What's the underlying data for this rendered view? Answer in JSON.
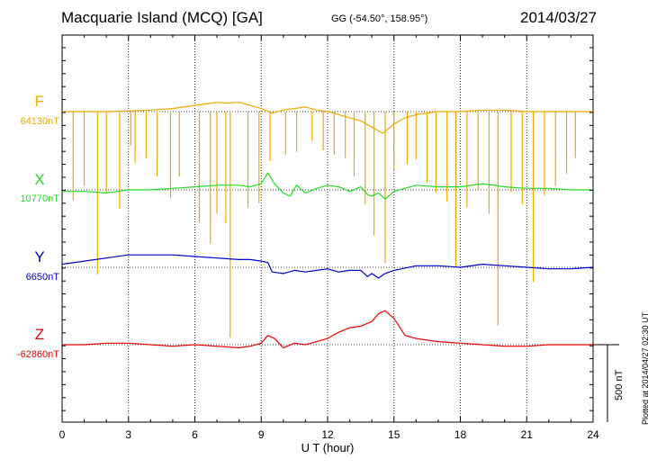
{
  "header": {
    "station": "Macquarie Island (MCQ)  [GA]",
    "coords": "GG (-54.50°, 158.95°)",
    "date": "2014/03/27"
  },
  "footer": {
    "plotted": "Plotted at 2014/04/27 02:30 UT"
  },
  "scale_bar": {
    "label": "500 nT",
    "value_nT": 500
  },
  "colors": {
    "F": "#f0a800",
    "X": "#22dd22",
    "Y": "#0000cc",
    "Z": "#ee0000"
  },
  "chart_data": {
    "type": "line",
    "xlabel": "U T (hour)",
    "xlim": [
      0,
      24
    ],
    "xticks": [
      0,
      3,
      6,
      9,
      12,
      15,
      18,
      21,
      24
    ],
    "grid": true,
    "series": [
      {
        "name": "F",
        "baseline": "64130nT",
        "x": [
          0,
          2,
          4,
          5,
          6,
          6.5,
          7,
          7.5,
          8,
          8.5,
          9,
          9.5,
          10,
          10.5,
          11,
          11.5,
          12,
          12.5,
          13,
          13.5,
          14,
          14.5,
          15,
          15.5,
          16,
          17,
          18,
          19,
          20,
          21,
          22,
          23,
          24
        ],
        "y": [
          0,
          0,
          10,
          20,
          40,
          50,
          60,
          55,
          60,
          40,
          20,
          -10,
          10,
          20,
          30,
          10,
          0,
          -20,
          -40,
          -60,
          -100,
          -140,
          -80,
          -40,
          -20,
          0,
          0,
          10,
          10,
          0,
          0,
          0,
          0
        ],
        "spikes": [
          {
            "x": 0.5,
            "depth": 570
          },
          {
            "x": 1.0,
            "depth": 480
          },
          {
            "x": 1.6,
            "depth": 1050
          },
          {
            "x": 2.0,
            "depth": 520
          },
          {
            "x": 2.6,
            "depth": 630
          },
          {
            "x": 3.1,
            "depth": 220
          },
          {
            "x": 3.3,
            "depth": 330
          },
          {
            "x": 3.8,
            "depth": 300
          },
          {
            "x": 4.3,
            "depth": 420
          },
          {
            "x": 4.9,
            "depth": 560
          },
          {
            "x": 5.3,
            "depth": 420
          },
          {
            "x": 6.2,
            "depth": 720
          },
          {
            "x": 6.7,
            "depth": 850
          },
          {
            "x": 7.0,
            "depth": 660
          },
          {
            "x": 7.4,
            "depth": 720
          },
          {
            "x": 7.6,
            "depth": 1460
          },
          {
            "x": 8.4,
            "depth": 620
          },
          {
            "x": 8.9,
            "depth": 590
          },
          {
            "x": 9.4,
            "depth": 320
          },
          {
            "x": 10.1,
            "depth": 280
          },
          {
            "x": 10.6,
            "depth": 260
          },
          {
            "x": 11.3,
            "depth": 190
          },
          {
            "x": 11.8,
            "depth": 250
          },
          {
            "x": 12.3,
            "depth": 280
          },
          {
            "x": 12.8,
            "depth": 300
          },
          {
            "x": 13.2,
            "depth": 420
          },
          {
            "x": 13.7,
            "depth": 600
          },
          {
            "x": 14.1,
            "depth": 800
          },
          {
            "x": 14.6,
            "depth": 980
          },
          {
            "x": 15.0,
            "depth": 380
          },
          {
            "x": 15.6,
            "depth": 340
          },
          {
            "x": 16.0,
            "depth": 310
          },
          {
            "x": 16.5,
            "depth": 460
          },
          {
            "x": 16.9,
            "depth": 520
          },
          {
            "x": 17.4,
            "depth": 580
          },
          {
            "x": 17.8,
            "depth": 1000
          },
          {
            "x": 18.3,
            "depth": 620
          },
          {
            "x": 18.8,
            "depth": 500
          },
          {
            "x": 19.3,
            "depth": 660
          },
          {
            "x": 19.7,
            "depth": 1380
          },
          {
            "x": 20.3,
            "depth": 520
          },
          {
            "x": 20.8,
            "depth": 600
          },
          {
            "x": 21.3,
            "depth": 1100
          },
          {
            "x": 21.8,
            "depth": 540
          },
          {
            "x": 22.3,
            "depth": 480
          },
          {
            "x": 22.8,
            "depth": 400
          },
          {
            "x": 23.2,
            "depth": 300
          }
        ]
      },
      {
        "name": "X",
        "baseline": "10770nT",
        "x": [
          0,
          1,
          2,
          3,
          4,
          5,
          6,
          7,
          8,
          8.5,
          9,
          9.3,
          9.6,
          10,
          10.3,
          10.6,
          11,
          11.5,
          12,
          12.5,
          13,
          13.5,
          13.8,
          14,
          14.3,
          14.6,
          15,
          15.5,
          16,
          17,
          18,
          19,
          20,
          21,
          22,
          23,
          24
        ],
        "y": [
          -10,
          -10,
          -20,
          0,
          0,
          10,
          20,
          30,
          30,
          20,
          40,
          110,
          40,
          -20,
          -40,
          30,
          -20,
          10,
          30,
          20,
          -10,
          20,
          -30,
          -40,
          -20,
          -60,
          -10,
          10,
          30,
          20,
          20,
          40,
          20,
          10,
          10,
          0,
          0
        ]
      },
      {
        "name": "Y",
        "baseline": "6650nT",
        "x": [
          0,
          1,
          2,
          3,
          4,
          5,
          6,
          7,
          8,
          8.5,
          9,
          9.3,
          9.5,
          10,
          10.5,
          11,
          11.5,
          12,
          12.5,
          13,
          13.5,
          13.8,
          14,
          14.3,
          14.6,
          15,
          16,
          17,
          18,
          19,
          20,
          21,
          22,
          23,
          24
        ],
        "y": [
          20,
          40,
          60,
          80,
          80,
          80,
          70,
          60,
          50,
          50,
          40,
          30,
          -30,
          -40,
          -20,
          -30,
          -20,
          -10,
          -30,
          -20,
          -20,
          -60,
          -40,
          -70,
          -40,
          -20,
          10,
          10,
          0,
          20,
          10,
          0,
          -10,
          -10,
          0
        ]
      },
      {
        "name": "Z",
        "baseline": "-62860nT",
        "x": [
          0,
          1,
          2,
          3,
          4,
          5,
          6,
          7,
          8,
          8.5,
          9,
          9.3,
          9.6,
          10,
          10.5,
          11,
          11.5,
          12,
          12.5,
          13,
          13.5,
          14,
          14.3,
          14.6,
          15,
          15.5,
          16,
          17,
          18,
          19,
          20,
          21,
          22,
          23,
          24
        ],
        "y": [
          0,
          0,
          10,
          10,
          0,
          -10,
          0,
          -10,
          -20,
          -10,
          10,
          60,
          40,
          -20,
          10,
          0,
          20,
          40,
          80,
          110,
          120,
          150,
          200,
          220,
          170,
          60,
          40,
          20,
          10,
          0,
          -10,
          -10,
          0,
          0,
          0
        ]
      }
    ]
  }
}
